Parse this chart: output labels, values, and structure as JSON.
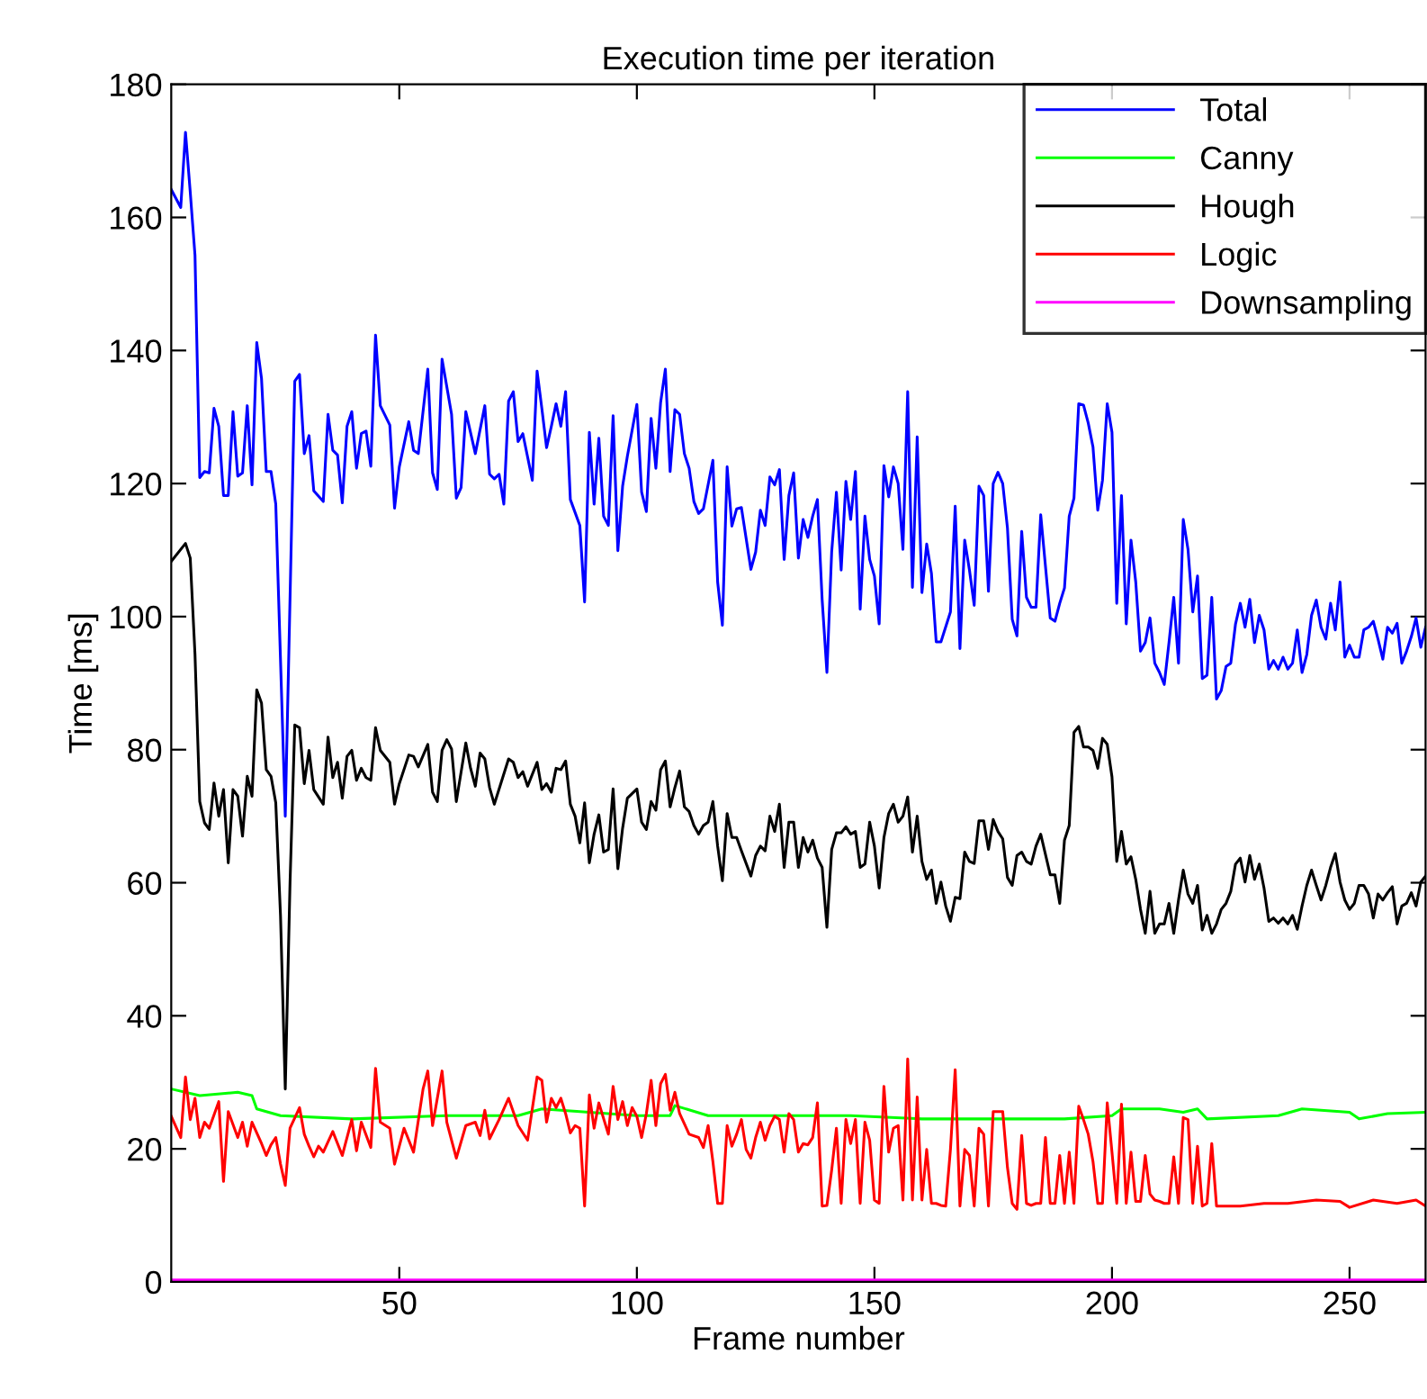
{
  "chart_data": {
    "type": "line",
    "title": "Execution time per iteration",
    "xlabel": "Frame number",
    "ylabel": "Time [ms]",
    "xlim": [
      2,
      266
    ],
    "ylim": [
      0,
      180
    ],
    "xticks": [
      50,
      100,
      150,
      200,
      250
    ],
    "yticks": [
      0,
      20,
      40,
      60,
      80,
      100,
      120,
      140,
      160,
      180
    ],
    "grid": false,
    "legend": "top right",
    "marker": "none",
    "line_style": "solid",
    "series": [
      {
        "name": "Total",
        "color": "#0000ff",
        "x": [
          2,
          4,
          5,
          6,
          7,
          8,
          9,
          10,
          11,
          12,
          13,
          14,
          15,
          16,
          17,
          18,
          19,
          20,
          21,
          22,
          23,
          24,
          26,
          28,
          29,
          30,
          31,
          32,
          34,
          35,
          36,
          37,
          38,
          39,
          40,
          41,
          42,
          43,
          44,
          45,
          46,
          48,
          49,
          50,
          52,
          53,
          54,
          56,
          57,
          58,
          59,
          61,
          62,
          63,
          64,
          66,
          68,
          69,
          70,
          71,
          72,
          73,
          74,
          75,
          76,
          78,
          79,
          80,
          81,
          82,
          83,
          84,
          85,
          86,
          88,
          89,
          90,
          91,
          92,
          93,
          94,
          95,
          96,
          97,
          98,
          100,
          101,
          102,
          103,
          104,
          105,
          106,
          107,
          108,
          109,
          110,
          111,
          112,
          113,
          114,
          116,
          117,
          118,
          119,
          120,
          121,
          122,
          124,
          125,
          126,
          127,
          128,
          129,
          130,
          131,
          132,
          133,
          134,
          135,
          136,
          137,
          138,
          139,
          140,
          141,
          142,
          143,
          144,
          145,
          146,
          147,
          148,
          149,
          150,
          151,
          152,
          153,
          154,
          155,
          156,
          157,
          158,
          159,
          160,
          161,
          162,
          163,
          164,
          166,
          167,
          168,
          169,
          170,
          171,
          172,
          173,
          174,
          175,
          176,
          177,
          178,
          179,
          180,
          181,
          182,
          183,
          184,
          185,
          187,
          188,
          189,
          190,
          191,
          192,
          193,
          194,
          195,
          196,
          197,
          198,
          199,
          200,
          201,
          202,
          203,
          204,
          205,
          206,
          207,
          208,
          209,
          210,
          211,
          212,
          213,
          214,
          215,
          216,
          217,
          218,
          219,
          220,
          221,
          222,
          223,
          224,
          225,
          226,
          227,
          228,
          229,
          230,
          231,
          232,
          233,
          234,
          235,
          236,
          237,
          238,
          239,
          240,
          241,
          242,
          243,
          244,
          245,
          246,
          247,
          248,
          249,
          250,
          251,
          252,
          253,
          254,
          255,
          256,
          257,
          258,
          259,
          260,
          261,
          262,
          263,
          264,
          265,
          266
        ],
        "values": [
          164.2,
          161.5,
          172.8,
          163.8,
          154.3,
          120.9,
          121.8,
          121.6,
          131.3,
          128.6,
          118.2,
          118.2,
          130.8,
          121.1,
          121.6,
          131.7,
          119.8,
          141.2,
          135.8,
          121.8,
          121.8,
          116.9,
          70,
          135.4,
          136.4,
          124.5,
          127.2,
          118.9,
          117.3,
          130.4,
          125.0,
          124.3,
          117.1,
          128.6,
          130.8,
          122.3,
          127.5,
          127.9,
          122.6,
          142.3,
          131.7,
          128.8,
          116.3,
          122.5,
          129.3,
          125.0,
          124.5,
          137.2,
          121.6,
          119.1,
          138.7,
          130.4,
          117.8,
          119.4,
          130.8,
          124.5,
          131.7,
          121.4,
          120.7,
          121.4,
          116.9,
          132.4,
          133.8,
          126.3,
          127.5,
          120.5,
          136.9,
          131.3,
          125.4,
          128.6,
          132.0,
          128.6,
          133.8,
          117.6,
          113.7,
          102.2,
          127.7,
          116.9,
          126.8,
          115.1,
          113.7,
          130.2,
          109.9,
          119.6,
          124.1,
          131.9,
          118.7,
          115.8,
          129.8,
          122.3,
          132.2,
          137.2,
          121.8,
          131.1,
          130.4,
          124.5,
          122.3,
          117.3,
          115.5,
          116.2,
          123.5,
          105.2,
          98.7,
          122.5,
          113.6,
          116.2,
          116.4,
          107.1,
          109.7,
          116.0,
          113.7,
          121.0,
          119.8,
          122.1,
          108.6,
          118.2,
          121.6,
          108.8,
          114.6,
          111.9,
          115.1,
          117.6,
          102.5,
          91.6,
          109.7,
          118.7,
          107.0,
          120.3,
          114.6,
          121.8,
          101.1,
          115.1,
          108.6,
          106.1,
          98.9,
          122.7,
          118.0,
          122.5,
          120.0,
          110.1,
          133.8,
          104.4,
          127.0,
          103.6,
          110.9,
          106.5,
          96.2,
          96.2,
          100.7,
          116.6,
          95.2,
          111.5,
          107.0,
          101.7,
          119.6,
          118.2,
          103.8,
          120.0,
          121.7,
          120.0,
          113.3,
          99.6,
          97.1,
          112.8,
          102.9,
          101.4,
          101.4,
          115.3,
          99.8,
          99.3,
          102.0,
          104.3,
          115.1,
          117.8,
          132,
          131.8,
          129.1,
          125.5,
          116.0,
          120.5,
          132,
          127.7,
          102.0,
          118.2,
          98.9,
          111.5,
          105.2,
          94.8,
          96.1,
          99.8,
          93.0,
          91.6,
          89.8,
          96.1,
          102.9,
          93.0,
          114.6,
          110.1,
          100.7,
          106.1,
          90.7,
          91.2,
          102.9,
          87.6,
          88.9,
          92.5,
          93.0,
          98.9,
          102.0,
          98.4,
          102.6,
          96.1,
          100.2,
          98.0,
          92.1,
          93.4,
          92.1,
          93.9,
          92.1,
          93.0,
          98.0,
          91.6,
          94.3,
          100.2,
          102.5,
          98.4,
          96.6,
          102.0,
          98.0,
          105.2,
          93.9,
          95.7,
          93.9,
          93.9,
          98.0,
          98.4,
          99.3,
          96.6,
          93.6,
          98.4,
          97.5,
          99.0,
          93.0,
          94.8,
          97.0,
          99.8,
          95.4,
          98.4
        ]
      },
      {
        "name": "Canny",
        "color": "#00ff00",
        "x": [
          2,
          8,
          16,
          19,
          20,
          25,
          40,
          60,
          75,
          80,
          100,
          107,
          108,
          115,
          125,
          145,
          160,
          190,
          200,
          202,
          210,
          215,
          218,
          220,
          235,
          240,
          250,
          252,
          258,
          266
        ],
        "values": [
          29,
          28,
          28.5,
          28,
          26,
          25,
          24.5,
          25,
          25,
          26,
          25,
          25,
          26.5,
          25,
          25,
          25,
          24.5,
          24.5,
          25,
          26,
          26,
          25.5,
          26,
          24.5,
          25,
          26,
          25.5,
          24.5,
          25.3,
          25.5
        ]
      },
      {
        "name": "Hough",
        "color": "#000000",
        "x": [
          2,
          5,
          6,
          7,
          8,
          9,
          10,
          11,
          12,
          13,
          14,
          15,
          16,
          17,
          18,
          19,
          20,
          21,
          22,
          23,
          24,
          25,
          26,
          27,
          28,
          29,
          30,
          31,
          32,
          34,
          35,
          36,
          37,
          38,
          39,
          40,
          41,
          42,
          43,
          44,
          45,
          46,
          48,
          49,
          50,
          52,
          53,
          54,
          56,
          57,
          58,
          59,
          60,
          61,
          62,
          64,
          65,
          66,
          67,
          68,
          69,
          70,
          73,
          74,
          75,
          76,
          77,
          79,
          80,
          81,
          82,
          83,
          84,
          85,
          86,
          87,
          88,
          89,
          90,
          91,
          92,
          93,
          94,
          95,
          96,
          97,
          98,
          100,
          101,
          102,
          103,
          104,
          105,
          106,
          107,
          108,
          109,
          110,
          111,
          112,
          113,
          114,
          115,
          116,
          117,
          118,
          119,
          120,
          121,
          122,
          124,
          125,
          126,
          127,
          128,
          129,
          130,
          131,
          132,
          133,
          134,
          135,
          136,
          137,
          138,
          139,
          140,
          141,
          142,
          143,
          144,
          145,
          146,
          147,
          148,
          149,
          150,
          151,
          152,
          153,
          154,
          155,
          156,
          157,
          158,
          159,
          160,
          161,
          162,
          163,
          164,
          165,
          166,
          167,
          168,
          169,
          170,
          171,
          172,
          173,
          174,
          175,
          176,
          177,
          178,
          179,
          180,
          181,
          182,
          183,
          184,
          185,
          187,
          188,
          189,
          190,
          191,
          192,
          193,
          194,
          195,
          196,
          197,
          198,
          199,
          200,
          201,
          202,
          203,
          204,
          205,
          206,
          207,
          208,
          209,
          210,
          211,
          212,
          213,
          214,
          215,
          216,
          217,
          218,
          219,
          220,
          221,
          222,
          223,
          224,
          225,
          226,
          227,
          228,
          229,
          230,
          231,
          232,
          233,
          234,
          235,
          236,
          237,
          238,
          239,
          240,
          241,
          242,
          243,
          244,
          245,
          246,
          247,
          248,
          249,
          250,
          251,
          252,
          253,
          254,
          255,
          256,
          257,
          258,
          259,
          260,
          261,
          262,
          263,
          264,
          265,
          266
        ],
        "values": [
          108.3,
          111.0,
          108.8,
          94.3,
          72.2,
          69,
          68,
          75,
          70,
          74,
          63,
          74,
          73,
          67,
          76,
          73,
          89,
          87,
          77,
          76,
          72,
          55,
          29,
          60,
          83.7,
          83.3,
          74.9,
          79.9,
          74.0,
          71.8,
          81.9,
          75.8,
          78.1,
          72.7,
          79.0,
          79.9,
          75.4,
          77.2,
          75.8,
          75.4,
          83.3,
          79.9,
          78.1,
          71.8,
          74.9,
          79.2,
          79.0,
          77.4,
          80.8,
          73.6,
          72.2,
          79.9,
          81.5,
          80.1,
          72.2,
          81.0,
          77.2,
          74.5,
          79.5,
          78.6,
          74.3,
          71.8,
          78.6,
          78.1,
          75.8,
          76.7,
          74.5,
          78.1,
          74.0,
          74.9,
          73.6,
          77.2,
          77.0,
          78.3,
          71.8,
          70,
          66,
          72,
          63,
          67.3,
          70.2,
          64.6,
          65.0,
          74.1,
          62.1,
          68.2,
          72.7,
          74.1,
          69.1,
          68.0,
          72.2,
          70.9,
          77.0,
          78.3,
          71.4,
          74.3,
          76.8,
          71.4,
          70.7,
          68.6,
          67.3,
          68.6,
          69.1,
          72.2,
          65.5,
          60.3,
          70.4,
          66.8,
          66.8,
          64.8,
          61.0,
          64.1,
          65.5,
          64.8,
          70.0,
          67.7,
          71.8,
          62.3,
          69.1,
          69.1,
          62.3,
          66.8,
          64.6,
          66.4,
          63.7,
          62.3,
          53.3,
          65.0,
          67.5,
          67.5,
          68.4,
          67.3,
          67.7,
          62.3,
          62.8,
          69.1,
          65.5,
          59.2,
          66.8,
          70.4,
          71.8,
          69.1,
          70.0,
          72.9,
          64.6,
          70.0,
          63.2,
          60.5,
          61.9,
          56.9,
          60.1,
          56.5,
          54.2,
          57.8,
          57.6,
          64.6,
          63.2,
          62.9,
          69.3,
          69.3,
          65.0,
          69.5,
          67.7,
          66.6,
          60.8,
          59.6,
          64.1,
          64.6,
          63.2,
          62.8,
          65.5,
          67.3,
          61.2,
          61.2,
          56.9,
          66.4,
          68.6,
          82.6,
          83.5,
          80.4,
          80.4,
          79.9,
          77.2,
          81.7,
          80.8,
          75.9,
          63.2,
          67.7,
          62.8,
          63.9,
          60.5,
          56.0,
          52.4,
          58.7,
          52.4,
          53.8,
          53.8,
          56.9,
          52.4,
          57.4,
          61.9,
          58.3,
          56.9,
          59.6,
          52.9,
          55.1,
          52.4,
          53.8,
          56.0,
          56.9,
          58.7,
          62.8,
          63.7,
          60.1,
          64.1,
          60.5,
          62.8,
          59.2,
          54.2,
          54.7,
          53.9,
          54.7,
          53.8,
          55.1,
          53.0,
          56.5,
          59.6,
          61.9,
          59.6,
          57.4,
          59.6,
          62.3,
          64.4,
          60.1,
          57.4,
          56.0,
          56.9,
          59.6,
          59.6,
          58.3,
          54.7,
          58.3,
          57.4,
          58.5,
          59.4,
          53.8,
          56.5,
          56.9,
          58.5,
          56.5,
          60.1,
          61.0
        ]
      },
      {
        "name": "Logic",
        "color": "#ff0000",
        "x": [
          2,
          4,
          5,
          6,
          7,
          8,
          9,
          10,
          12,
          13,
          14,
          16,
          17,
          18,
          19,
          21,
          22,
          23,
          24,
          25,
          26,
          27,
          29,
          30,
          31,
          32,
          33,
          34,
          36,
          38,
          40,
          41,
          42,
          44,
          45,
          46,
          48,
          49,
          51,
          53,
          55,
          56,
          57,
          59,
          60,
          62,
          64,
          66,
          67,
          68,
          69,
          71,
          73,
          75,
          77,
          79,
          80,
          81,
          82,
          83,
          84,
          85,
          86,
          87,
          88,
          89,
          90,
          91,
          92,
          94,
          95,
          96,
          97,
          98,
          99,
          100,
          101,
          102,
          103,
          104,
          105,
          106,
          107,
          108,
          109,
          111,
          113,
          114,
          115,
          116,
          117,
          118,
          119,
          120,
          121,
          122,
          123,
          124,
          125,
          126,
          127,
          128,
          129,
          130,
          131,
          132,
          133,
          134,
          135,
          136,
          137,
          138,
          139,
          140,
          141,
          142,
          143,
          144,
          145,
          146,
          147,
          148,
          149,
          150,
          151,
          152,
          153,
          154,
          155,
          156,
          157,
          158,
          159,
          160,
          161,
          162,
          163,
          164,
          165,
          166,
          167,
          168,
          169,
          170,
          171,
          172,
          173,
          174,
          175,
          176,
          177,
          178,
          179,
          180,
          181,
          182,
          183,
          184,
          185,
          186,
          187,
          188,
          189,
          190,
          191,
          192,
          193,
          194,
          195,
          196,
          197,
          198,
          199,
          200,
          201,
          202,
          203,
          204,
          205,
          206,
          207,
          208,
          209,
          210,
          211,
          212,
          213,
          214,
          215,
          216,
          217,
          218,
          219,
          220,
          221,
          222,
          227,
          232,
          237,
          243,
          248,
          250,
          255,
          260,
          264,
          266
        ],
        "values": [
          24.9,
          21.7,
          30.8,
          24.4,
          27.6,
          21.7,
          24.0,
          23.1,
          27.1,
          15.1,
          25.6,
          21.7,
          24.0,
          20.4,
          24.0,
          20.8,
          19.0,
          20.6,
          21.7,
          17.7,
          14.5,
          23.1,
          26.2,
          22.2,
          20.4,
          18.8,
          20.4,
          19.5,
          22.6,
          19.0,
          24.4,
          19.7,
          24.0,
          20.2,
          32.1,
          24.0,
          23.1,
          17.7,
          23.1,
          19.5,
          29.0,
          31.7,
          23.5,
          31.7,
          24.0,
          18.6,
          23.5,
          24.0,
          22.0,
          25.8,
          21.5,
          24.4,
          27.6,
          23.5,
          21.3,
          30.8,
          30.3,
          24.0,
          27.6,
          26.2,
          27.6,
          25.3,
          22.4,
          23.5,
          23.1,
          11.4,
          28.1,
          23.1,
          26.9,
          22.2,
          29.4,
          24.4,
          27.1,
          23.5,
          26.2,
          24.9,
          21.7,
          25.3,
          30.3,
          23.5,
          29.8,
          31.2,
          25.8,
          28.5,
          25.3,
          22.2,
          21.7,
          20.2,
          23.5,
          18.1,
          11.8,
          11.8,
          23.5,
          20.4,
          22.2,
          24.4,
          19.9,
          18.6,
          21.7,
          24.0,
          21.3,
          23.5,
          24.9,
          24.4,
          19.5,
          25.3,
          24.4,
          19.5,
          20.8,
          20.6,
          21.7,
          26.9,
          11.4,
          11.5,
          16.8,
          23.1,
          11.8,
          24.4,
          20.8,
          24.4,
          11.8,
          24.0,
          21.3,
          12.3,
          11.8,
          29.4,
          19.5,
          23.1,
          23.5,
          12.3,
          33.5,
          12.3,
          27.8,
          12.3,
          19.9,
          11.8,
          11.8,
          11.5,
          11.4,
          19.9,
          31.9,
          11.4,
          19.9,
          19.0,
          11.4,
          23.1,
          22.2,
          11.4,
          25.6,
          25.6,
          25.6,
          17.2,
          11.8,
          10.9,
          22.0,
          11.8,
          11.5,
          11.8,
          11.8,
          21.7,
          11.8,
          11.8,
          19.0,
          11.8,
          19.5,
          11.8,
          26.4,
          24.4,
          22.2,
          18.1,
          11.8,
          11.8,
          26.9,
          19.5,
          11.8,
          26.7,
          11.8,
          19.5,
          12.1,
          12.1,
          19.0,
          13.2,
          12.3,
          12.1,
          11.8,
          11.8,
          18.8,
          11.8,
          24.7,
          24.4,
          11.8,
          20.4,
          11.4,
          11.8,
          20.8,
          11.4,
          11.4,
          11.8,
          11.8,
          12.3,
          12.1,
          11.2,
          12.3,
          11.8,
          12.3,
          11.4
        ]
      },
      {
        "name": "Downsampling",
        "color": "#ff00ff",
        "x": [
          2,
          50,
          100,
          150,
          200,
          250,
          266
        ],
        "values": [
          0.3,
          0.3,
          0.3,
          0.3,
          0.3,
          0.3,
          0.3
        ]
      }
    ]
  }
}
